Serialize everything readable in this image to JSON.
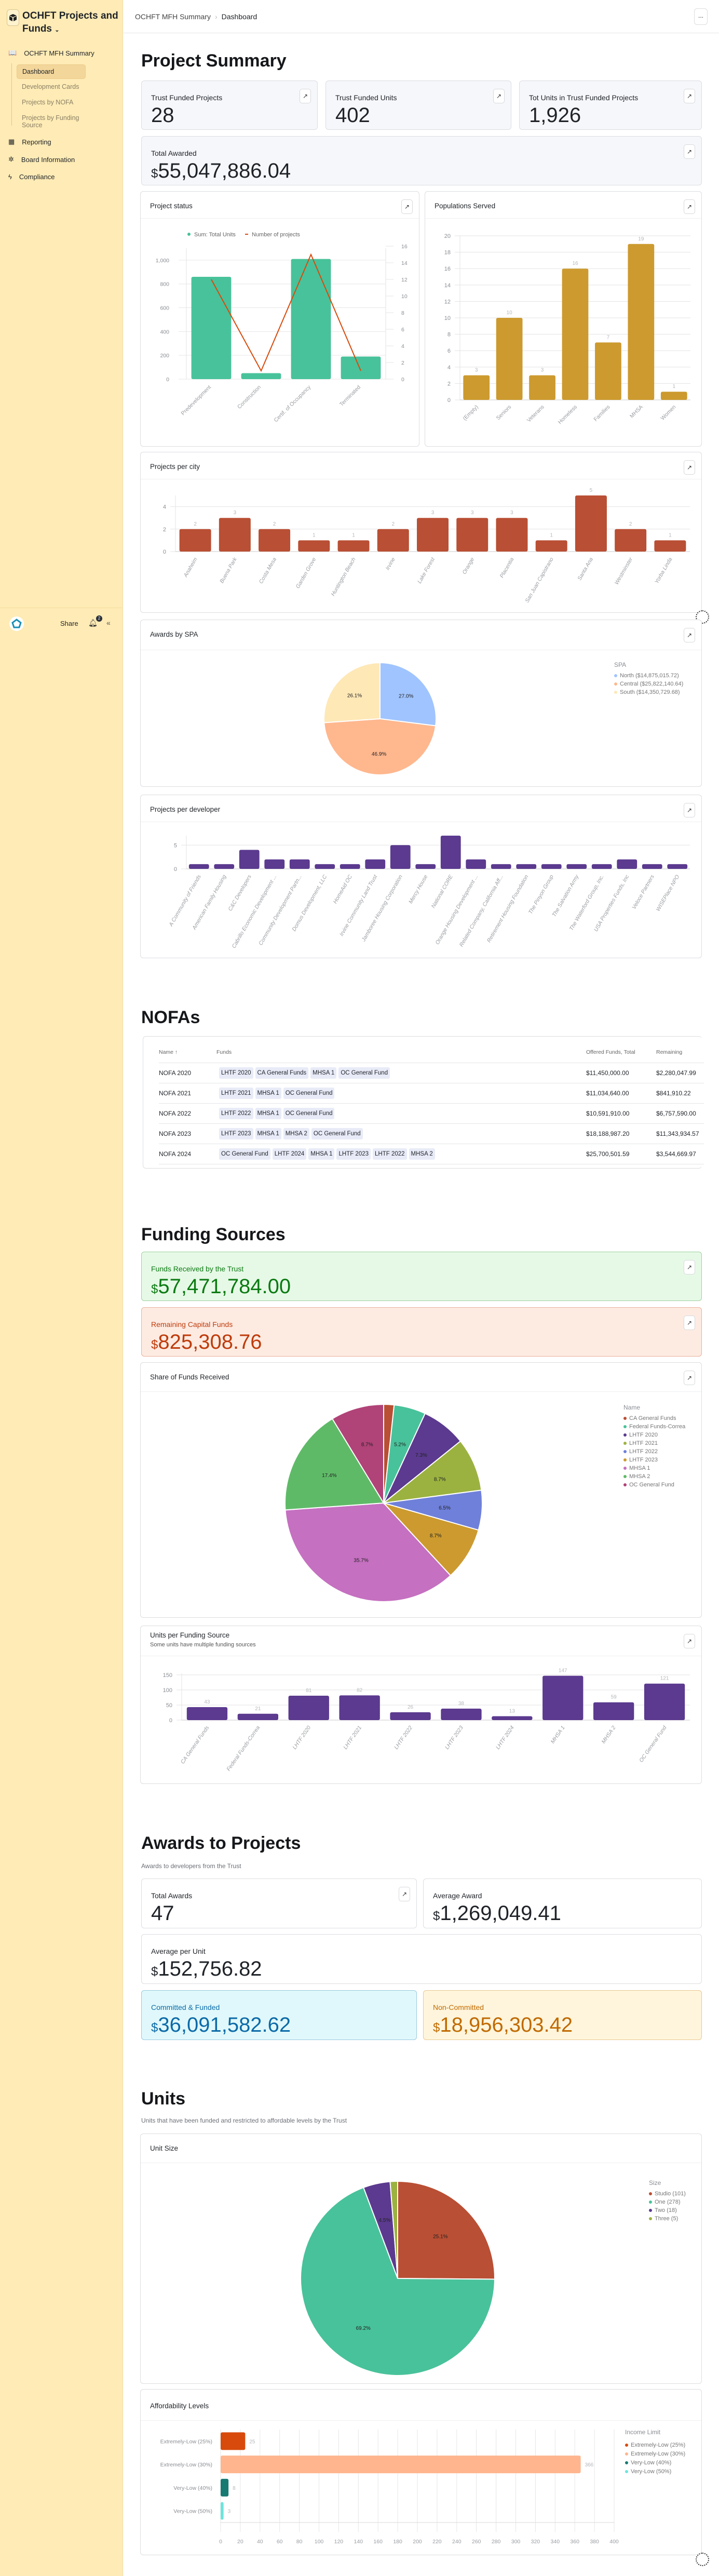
{
  "app": {
    "title": "OCHFT Projects and Funds",
    "share": "Share",
    "notif_count": "2"
  },
  "sidebar": {
    "section": "OCHFT MFH Summary",
    "subitems": [
      {
        "label": "Dashboard",
        "active": true
      },
      {
        "label": "Development Cards"
      },
      {
        "label": "Projects by NOFA"
      },
      {
        "label": "Projects by Funding Source"
      }
    ],
    "items": [
      {
        "label": "Reporting",
        "icon": "map-icon"
      },
      {
        "label": "Board Information",
        "icon": "badge-icon"
      },
      {
        "label": "Compliance",
        "icon": "bolt-icon"
      }
    ]
  },
  "breadcrumb": {
    "parent": "OCHFT MFH Summary",
    "current": "Dashboard",
    "more": "..."
  },
  "summary": {
    "title": "Project Summary",
    "kpis": [
      {
        "label": "Trust Funded Projects",
        "value": "28"
      },
      {
        "label": "Trust Funded Units",
        "value": "402"
      },
      {
        "label": "Tot Units in Trust Funded Projects",
        "value": "1,926"
      }
    ],
    "total_awarded": {
      "label": "Total Awarded",
      "currency": "$",
      "value": "55,047,886.04"
    }
  },
  "nofas": {
    "title": "NOFAs",
    "columns": [
      "Name ↑",
      "Funds",
      "Offered Funds, Total",
      "Remaining"
    ],
    "rows": [
      {
        "name": "NOFA 2020",
        "funds": [
          "LHTF 2020",
          "CA General Funds",
          "MHSA 1",
          "OC General Fund"
        ],
        "offered": "$11,450,000.00",
        "remaining": "$2,280,047.99"
      },
      {
        "name": "NOFA 2021",
        "funds": [
          "LHTF 2021",
          "MHSA 1",
          "OC General Fund"
        ],
        "offered": "$11,034,640.00",
        "remaining": "$841,910.22"
      },
      {
        "name": "NOFA 2022",
        "funds": [
          "LHTF 2022",
          "MHSA 1",
          "OC General Fund"
        ],
        "offered": "$10,591,910.00",
        "remaining": "$6,757,590.00"
      },
      {
        "name": "NOFA 2023",
        "funds": [
          "LHTF 2023",
          "MHSA 1",
          "MHSA 2",
          "OC General Fund"
        ],
        "offered": "$18,188,987.20",
        "remaining": "$11,343,934.57"
      },
      {
        "name": "NOFA 2024",
        "funds": [
          "OC General Fund",
          "LHTF 2024",
          "MHSA 1",
          "LHTF 2023",
          "LHTF 2022",
          "MHSA 2"
        ],
        "offered": "$25,700,501.59",
        "remaining": "$3,544,669.97"
      }
    ]
  },
  "funding": {
    "title": "Funding Sources",
    "received": {
      "label": "Funds Received by the Trust",
      "currency": "$",
      "value": "57,471,784.00",
      "color": "#0b7a12",
      "bg": "#e6f9e6"
    },
    "remaining": {
      "label": "Remaining Capital Funds",
      "currency": "$",
      "value": "825,308.76",
      "color": "#bf3b0b",
      "bg": "#fdebe2"
    }
  },
  "awards": {
    "title": "Awards to Projects",
    "subtitle": "Awards to developers from the Trust",
    "total": {
      "label": "Total Awards",
      "value": "47"
    },
    "average": {
      "label": "Average Award",
      "currency": "$",
      "value": "1,269,049.41"
    },
    "per_unit": {
      "label": "Average per Unit",
      "currency": "$",
      "value": "152,756.82"
    },
    "committed": {
      "label": "Committed & Funded",
      "currency": "$",
      "value": "36,091,582.62",
      "color": "#0b6aa8",
      "bg": "#e0f8fb"
    },
    "non_committed": {
      "label": "Non-Committed",
      "currency": "$",
      "value": "18,956,303.42",
      "color": "#c06a00",
      "bg": "#fff5dc"
    }
  },
  "units": {
    "title": "Units",
    "subtitle": "Units that have been funded and restricted to affordable levels by the Trust"
  },
  "chart_data": [
    {
      "id": "status",
      "title": "Project status",
      "type": "bar+line",
      "categories": [
        "Predevelopment",
        "Construction",
        "Certif. of Occupancy",
        "Terminated"
      ],
      "series": [
        {
          "name": "Sum: Total Units",
          "type": "bar",
          "axis": "left",
          "values": [
            860,
            50,
            1010,
            190
          ],
          "color": "#48c29a"
        },
        {
          "name": "Number of projects",
          "type": "line",
          "axis": "right",
          "values": [
            12,
            1,
            15,
            1
          ],
          "color": "#d84a0b"
        }
      ],
      "ylim": [
        0,
        1100
      ],
      "yticks": [
        0,
        200,
        400,
        600,
        800,
        1000
      ],
      "y2lim": [
        0,
        16
      ],
      "y2ticks": [
        0,
        2,
        4,
        6,
        8,
        10,
        12,
        14,
        16
      ],
      "legend": "top",
      "grid": true
    },
    {
      "id": "populations",
      "title": "Populations Served",
      "type": "bar",
      "categories": [
        "(Empty)",
        "Seniors",
        "Veterans",
        "Homeless",
        "Families",
        "MHSA",
        "Women"
      ],
      "values": [
        3,
        10,
        3,
        16,
        7,
        19,
        1
      ],
      "color": "#cc9a2f",
      "ylim": [
        0,
        20
      ],
      "yticks": [
        0,
        2,
        4,
        6,
        8,
        10,
        12,
        14,
        16,
        18,
        20
      ],
      "data_labels": true,
      "grid": true
    },
    {
      "id": "city",
      "title": "Projects per city",
      "type": "bar",
      "categories": [
        "Anaheim",
        "Buena Park",
        "Costa Mesa",
        "Garden Grove",
        "Huntington Beach",
        "Irvine",
        "Lake Forest",
        "Orange",
        "Placentia",
        "San Juan Capistrano",
        "Santa Ana",
        "Westminster",
        "Yorba Linda"
      ],
      "values": [
        2,
        3,
        2,
        1,
        1,
        2,
        3,
        3,
        3,
        1,
        5,
        2,
        1
      ],
      "color": "#b94f34",
      "ylim": [
        0,
        5
      ],
      "yticks": [
        0,
        2,
        4
      ],
      "data_labels": true,
      "grid": true
    },
    {
      "id": "spa",
      "title": "Awards by SPA",
      "type": "pie",
      "legend_title": "SPA",
      "legend": "right",
      "slices": [
        {
          "name": "North ($14,875,015.72)",
          "value": 27.0,
          "label": "27.0%",
          "color": "#a0c4ff"
        },
        {
          "name": "Central ($25,822,140.64)",
          "value": 46.9,
          "label": "46.9%",
          "color": "#ffb78e"
        },
        {
          "name": "South ($14,350,729.68)",
          "value": 26.1,
          "label": "26.1%",
          "color": "#fee8b6"
        }
      ]
    },
    {
      "id": "developer",
      "title": "Projects per developer",
      "type": "bar",
      "categories": [
        "A Community of Friends",
        "American Family Housing",
        "C&C Developers",
        "Cabrillo Economic Development ...",
        "Community Development Partn...",
        "Domus Development, LLC",
        "HomeAid OC",
        "Irvine Community Land Trust",
        "Jamboree Housing Corporation",
        "Mercy House",
        "National CORE",
        "Orange Housing Development ...",
        "Related Company, California Aff...",
        "Retirement Housing Foundation",
        "The Pinyon Group",
        "The Salvation Army",
        "The Waterford Group, Inc.",
        "USA Properties Funds, Inc",
        "Veloce Partners",
        "WISEPlace NPO"
      ],
      "values": [
        1,
        1,
        4,
        2,
        2,
        1,
        1,
        2,
        5,
        1,
        7,
        2,
        1,
        1,
        1,
        1,
        1,
        2,
        1,
        1
      ],
      "color": "#5b3a8f",
      "ylim": [
        0,
        7
      ],
      "yticks": [
        0,
        5
      ],
      "data_labels": false,
      "grid": true
    },
    {
      "id": "share",
      "title": "Share of Funds Received",
      "type": "pie",
      "legend_title": "Name",
      "legend": "right",
      "slices": [
        {
          "name": "CA General Funds",
          "value": 1.7,
          "label": "",
          "color": "#b94f34"
        },
        {
          "name": "Federal Funds-Correa",
          "value": 5.2,
          "label": "5.2%",
          "color": "#48c29a"
        },
        {
          "name": "LHTF 2020",
          "value": 7.3,
          "label": "7.3%",
          "color": "#5b3a8f"
        },
        {
          "name": "LHTF 2021",
          "value": 8.7,
          "label": "8.7%",
          "color": "#9bb240"
        },
        {
          "name": "LHTF 2022",
          "value": 6.5,
          "label": "6.5%",
          "color": "#6f80da"
        },
        {
          "name": "LHTF 2023",
          "value": 8.7,
          "label": "8.7%",
          "color": "#cc9a2f"
        },
        {
          "name": "MHSA 1",
          "value": 35.7,
          "label": "35.7%",
          "color": "#c570c0"
        },
        {
          "name": "MHSA 2",
          "value": 17.4,
          "label": "17.4%",
          "color": "#5fba68"
        },
        {
          "name": "OC General Fund",
          "value": 8.7,
          "label": "8.7%",
          "color": "#b04378"
        }
      ]
    },
    {
      "id": "unitsfund",
      "title": "Units per Funding Source",
      "subtitle": "Some units have multiple funding sources",
      "type": "bar",
      "categories": [
        "CA General Funds",
        "Federal Funds-Correa",
        "LHTF 2020",
        "LHTF 2021",
        "LHTF 2022",
        "LHTF 2023",
        "LHTF 2024",
        "MHSA 1",
        "MHSA 2",
        "OC General Fund"
      ],
      "values": [
        43,
        21,
        81,
        82,
        26,
        38,
        13,
        147,
        59,
        121
      ],
      "color": "#5b3a8f",
      "ylim": [
        0,
        155
      ],
      "yticks": [
        0,
        50,
        100,
        150
      ],
      "data_labels": true,
      "grid": true
    },
    {
      "id": "unitsize",
      "title": "Unit Size",
      "type": "pie",
      "legend_title": "Size",
      "legend": "right",
      "slices": [
        {
          "name": "Studio (101)",
          "value": 101,
          "label": "25.1%",
          "color": "#b94f34"
        },
        {
          "name": "One (278)",
          "value": 278,
          "label": "69.2%",
          "color": "#48c29a"
        },
        {
          "name": "Two (18)",
          "value": 18,
          "label": "4.5%",
          "color": "#5b3a8f"
        },
        {
          "name": "Three (5)",
          "value": 5,
          "label": "",
          "color": "#9bb240"
        }
      ]
    },
    {
      "id": "afford",
      "title": "Affordability Levels",
      "type": "bar",
      "orientation": "horizontal",
      "legend_title": "Income Limit",
      "legend": "right",
      "categories": [
        "Extremely-Low (25%)",
        "Extremely-Low (30%)",
        "Very-Low (40%)",
        "Very-Low (50%)"
      ],
      "values": [
        25,
        366,
        8,
        3
      ],
      "colors": [
        "#d84a0b",
        "#ffb58e",
        "#177a72",
        "#6ce5dc"
      ],
      "xlim": [
        0,
        400
      ],
      "xticks": [
        0,
        20,
        40,
        60,
        80,
        100,
        120,
        140,
        160,
        180,
        200,
        220,
        240,
        260,
        280,
        300,
        320,
        340,
        360,
        380,
        400
      ],
      "data_labels": true,
      "grid": true
    }
  ]
}
